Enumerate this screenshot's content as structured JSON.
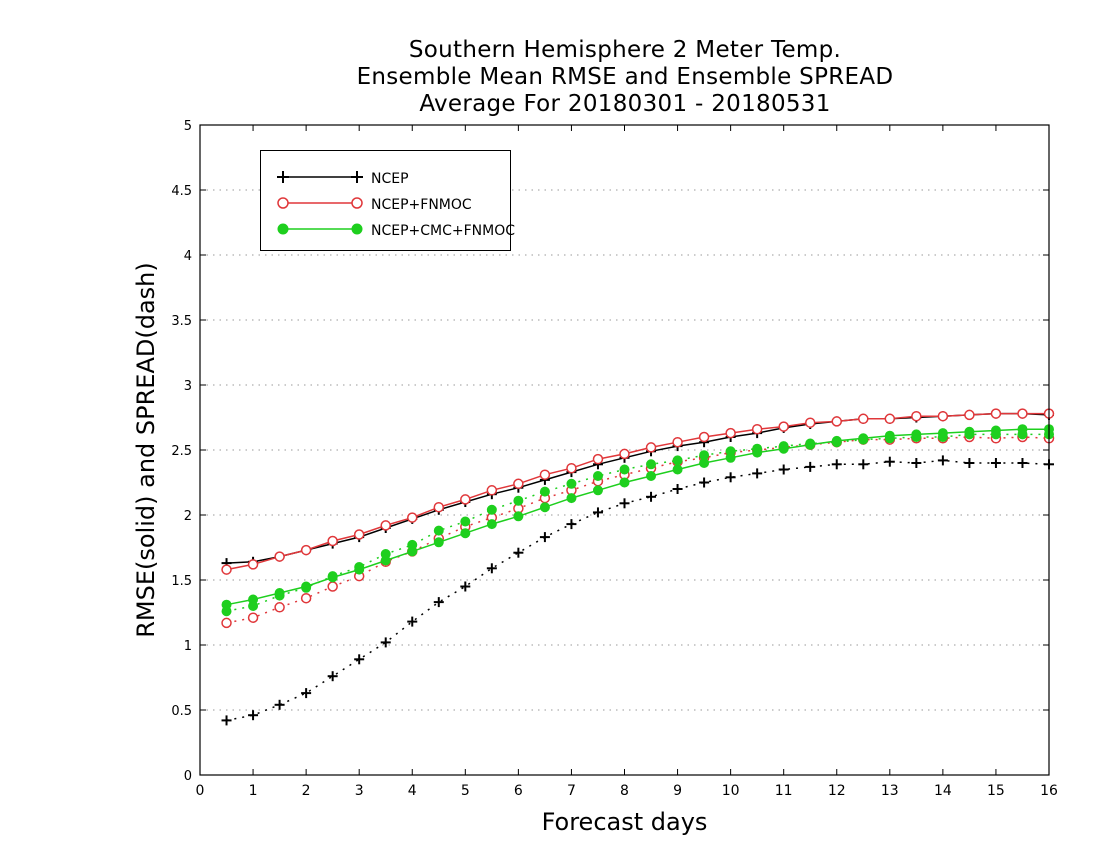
{
  "title_lines": [
    "Southern Hemisphere 2 Meter Temp.",
    "Ensemble Mean RMSE and Ensemble SPREAD",
    "Average For 20180301 - 20180531"
  ],
  "chart_data": {
    "type": "line",
    "title": "Southern Hemisphere 2 Meter Temp. Ensemble Mean RMSE and Ensemble SPREAD Average For 20180301 - 20180531",
    "xlabel": "Forecast days",
    "ylabel": "RMSE(solid) and SPREAD(dash)",
    "xlim": [
      0,
      16
    ],
    "ylim": [
      0,
      5
    ],
    "xticks": [
      "0",
      "1",
      "2",
      "3",
      "4",
      "5",
      "6",
      "7",
      "8",
      "9",
      "10",
      "11",
      "12",
      "13",
      "14",
      "15",
      "16"
    ],
    "yticks": [
      "0",
      "0.5",
      "1",
      "1.5",
      "2",
      "2.5",
      "3",
      "3.5",
      "4",
      "4.5",
      "5"
    ],
    "grid": "horizontal dotted",
    "legend_position": "top-left",
    "x": [
      0.5,
      1,
      1.5,
      2,
      2.5,
      3,
      3.5,
      4,
      4.5,
      5,
      5.5,
      6,
      6.5,
      7,
      7.5,
      8,
      8.5,
      9,
      9.5,
      10,
      10.5,
      11,
      11.5,
      12,
      12.5,
      13,
      13.5,
      14,
      14.5,
      15,
      15.5,
      16
    ],
    "series": [
      {
        "name": "NCEP",
        "marker": "plus",
        "color": "#000000",
        "style": "solid",
        "metric": "RMSE",
        "values": [
          1.63,
          1.64,
          1.68,
          1.73,
          1.78,
          1.83,
          1.9,
          1.97,
          2.04,
          2.1,
          2.16,
          2.21,
          2.27,
          2.33,
          2.39,
          2.44,
          2.49,
          2.53,
          2.56,
          2.6,
          2.63,
          2.67,
          2.7,
          2.72,
          2.74,
          2.74,
          2.75,
          2.76,
          2.77,
          2.78,
          2.78,
          2.77
        ]
      },
      {
        "name": "NCEP",
        "marker": "plus",
        "color": "#000000",
        "style": "dotted",
        "metric": "SPREAD",
        "values": [
          0.42,
          0.46,
          0.54,
          0.63,
          0.76,
          0.89,
          1.02,
          1.18,
          1.33,
          1.45,
          1.59,
          1.71,
          1.83,
          1.93,
          2.02,
          2.09,
          2.14,
          2.2,
          2.25,
          2.29,
          2.32,
          2.35,
          2.37,
          2.39,
          2.39,
          2.41,
          2.4,
          2.42,
          2.4,
          2.4,
          2.4,
          2.39
        ]
      },
      {
        "name": "NCEP+FNMOC",
        "marker": "open-circle",
        "color": "#e0373a",
        "style": "solid",
        "metric": "RMSE",
        "values": [
          1.58,
          1.62,
          1.68,
          1.73,
          1.8,
          1.85,
          1.92,
          1.98,
          2.06,
          2.12,
          2.19,
          2.24,
          2.31,
          2.36,
          2.43,
          2.47,
          2.52,
          2.56,
          2.6,
          2.63,
          2.66,
          2.68,
          2.71,
          2.72,
          2.74,
          2.74,
          2.76,
          2.76,
          2.77,
          2.78,
          2.78,
          2.78
        ]
      },
      {
        "name": "NCEP+FNMOC",
        "marker": "open-circle",
        "color": "#e0373a",
        "style": "dotted",
        "metric": "SPREAD",
        "values": [
          1.17,
          1.21,
          1.29,
          1.36,
          1.45,
          1.53,
          1.64,
          1.72,
          1.82,
          1.91,
          1.98,
          2.05,
          2.13,
          2.19,
          2.26,
          2.31,
          2.36,
          2.41,
          2.44,
          2.48,
          2.5,
          2.52,
          2.54,
          2.56,
          2.58,
          2.58,
          2.59,
          2.59,
          2.6,
          2.59,
          2.6,
          2.59
        ]
      },
      {
        "name": "NCEP+CMC+FNMOC",
        "marker": "filled-circle",
        "color": "#1ecf1e",
        "style": "solid",
        "metric": "RMSE",
        "values": [
          1.31,
          1.35,
          1.4,
          1.45,
          1.52,
          1.58,
          1.65,
          1.72,
          1.79,
          1.86,
          1.93,
          1.99,
          2.06,
          2.13,
          2.19,
          2.25,
          2.3,
          2.35,
          2.4,
          2.44,
          2.48,
          2.51,
          2.54,
          2.57,
          2.59,
          2.61,
          2.62,
          2.63,
          2.64,
          2.65,
          2.66,
          2.66
        ]
      },
      {
        "name": "NCEP+CMC+FNMOC",
        "marker": "filled-circle",
        "color": "#1ecf1e",
        "style": "dotted",
        "metric": "SPREAD",
        "values": [
          1.26,
          1.3,
          1.38,
          1.44,
          1.53,
          1.6,
          1.7,
          1.77,
          1.88,
          1.95,
          2.04,
          2.11,
          2.18,
          2.24,
          2.3,
          2.35,
          2.39,
          2.42,
          2.46,
          2.49,
          2.51,
          2.53,
          2.55,
          2.56,
          2.58,
          2.59,
          2.6,
          2.6,
          2.62,
          2.62,
          2.62,
          2.62
        ]
      }
    ]
  },
  "legend": [
    {
      "label": "NCEP",
      "marker": "plus",
      "color": "#000000"
    },
    {
      "label": "NCEP+FNMOC",
      "marker": "open-circle",
      "color": "#e0373a"
    },
    {
      "label": "NCEP+CMC+FNMOC",
      "marker": "filled-circle",
      "color": "#1ecf1e"
    }
  ]
}
